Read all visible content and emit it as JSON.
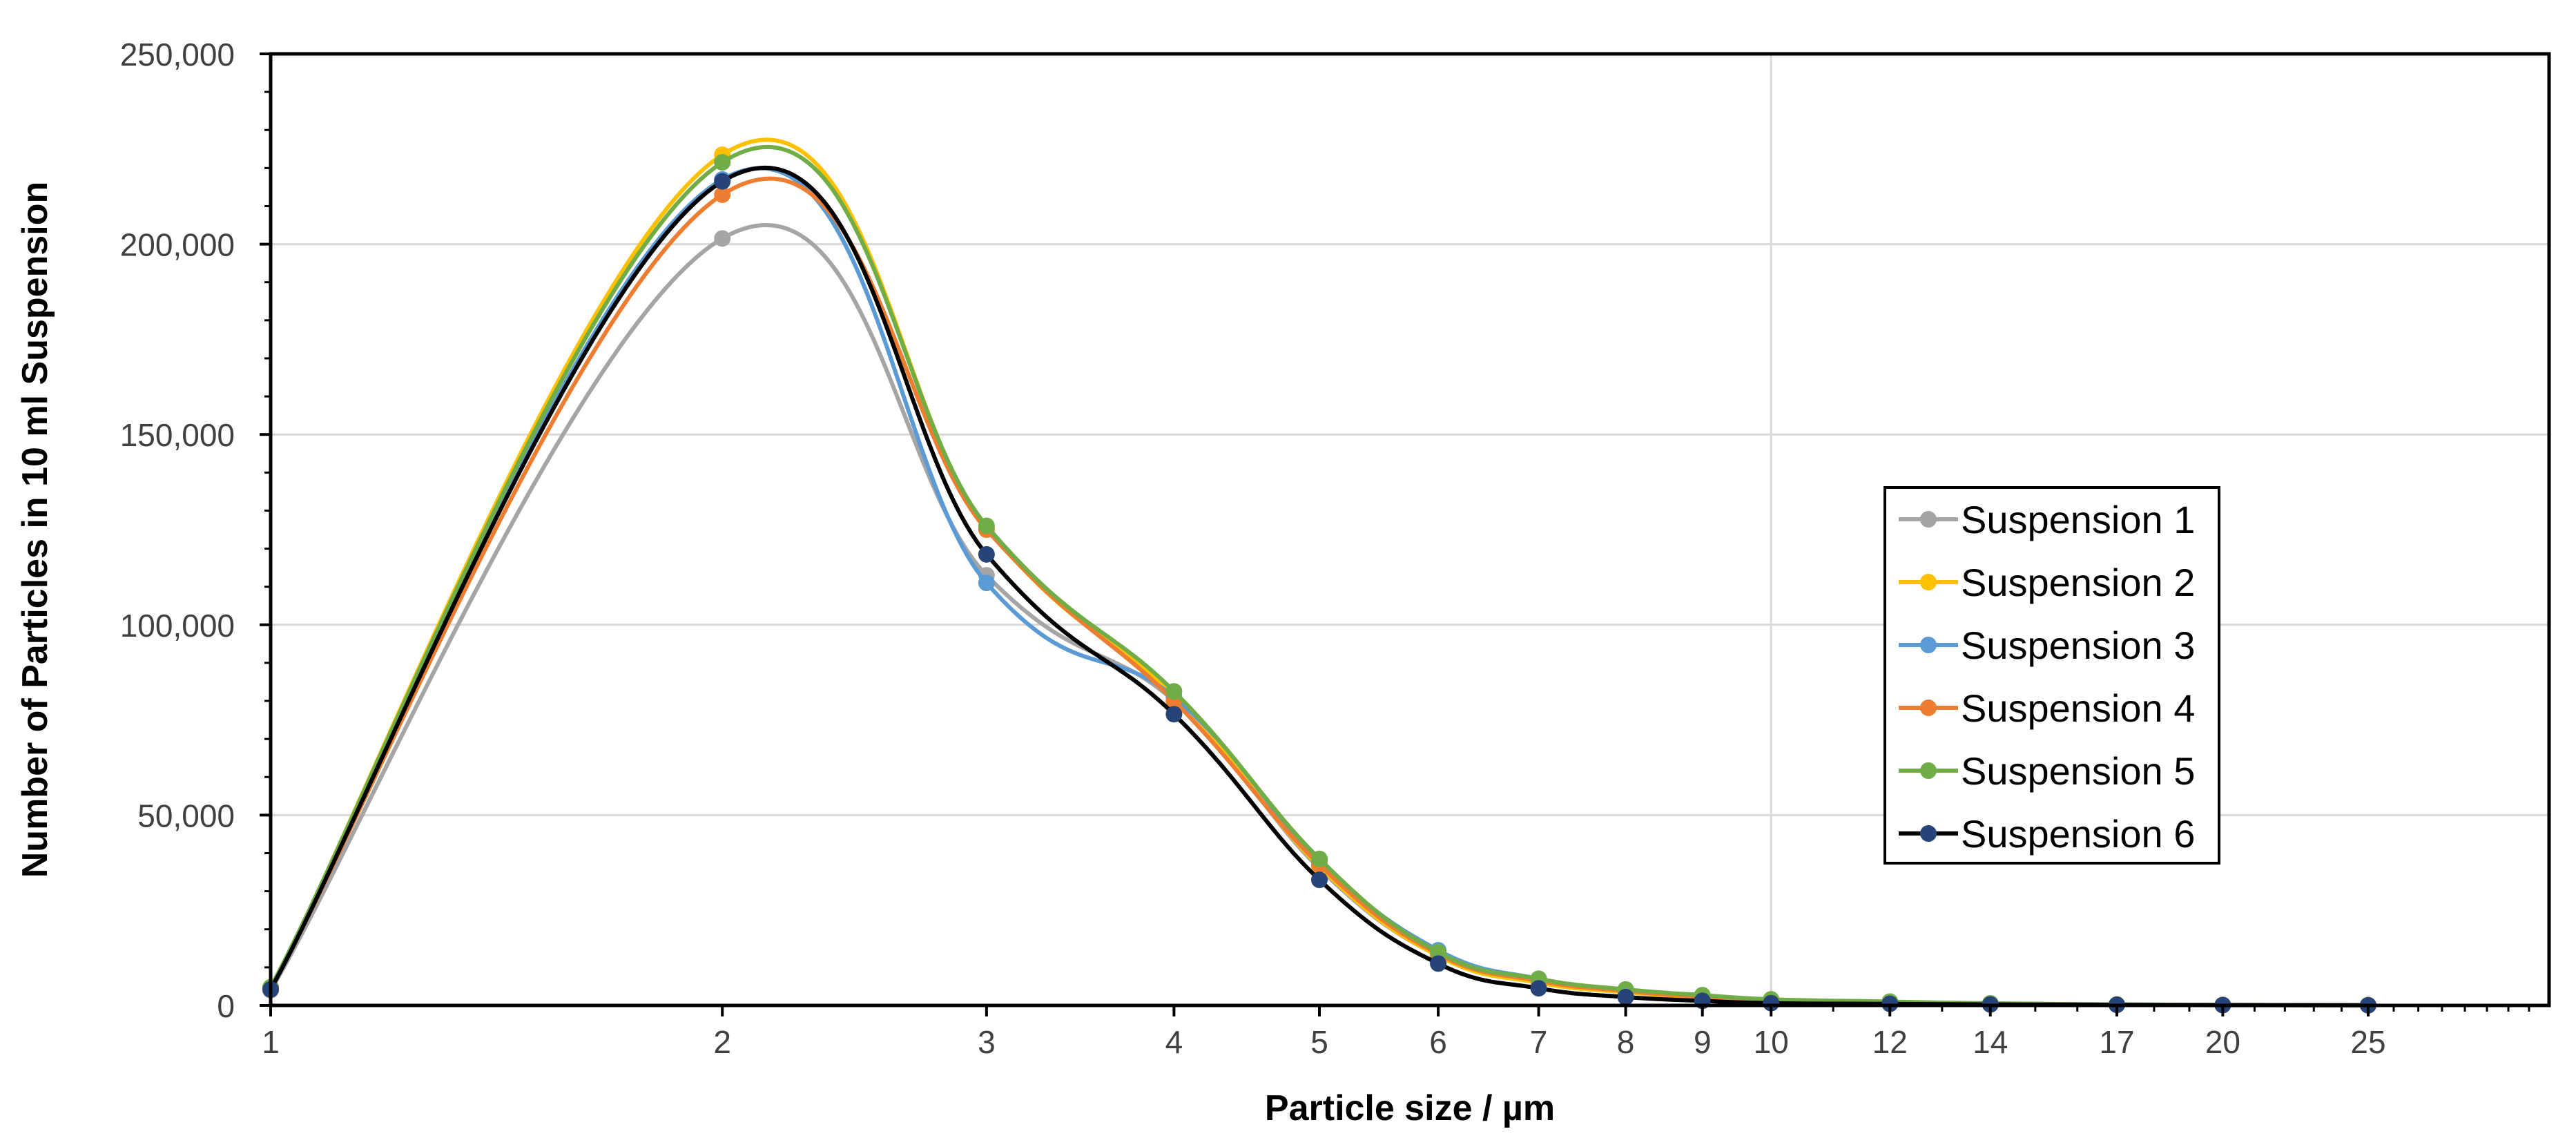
{
  "chart_data": {
    "type": "line",
    "title": "",
    "xlabel": "Particle size / µm",
    "ylabel": "Number of Particles in 10 ml Suspension",
    "x_scale": "log",
    "xlim": [
      1,
      33
    ],
    "ylim": [
      0,
      250000
    ],
    "x_ticks": [
      1,
      2,
      3,
      4,
      5,
      6,
      7,
      8,
      9,
      10,
      12,
      14,
      17,
      20,
      25
    ],
    "x_tick_labels": [
      "1",
      "2",
      "3",
      "4",
      "5",
      "6",
      "7",
      "8",
      "9",
      "10",
      "12",
      "14",
      "17",
      "20",
      "25"
    ],
    "y_ticks": [
      0,
      50000,
      100000,
      150000,
      200000,
      250000
    ],
    "y_tick_labels": [
      "0",
      "50,000",
      "100,000",
      "150,000",
      "200,000",
      "250,000"
    ],
    "grid": "horizontal major gridlines plus vertical gridline at x=10",
    "legend_position": "center-right",
    "x": [
      1,
      2,
      3,
      4,
      5,
      6,
      7,
      8,
      9,
      10,
      12,
      14,
      17,
      20,
      25
    ],
    "series": [
      {
        "name": "Suspension 1",
        "color": "#A5A5A5",
        "values": [
          4000,
          201500,
          113000,
          80000,
          36000,
          13000,
          6000,
          3500,
          2000,
          1200,
          700,
          400,
          200,
          100,
          50
        ]
      },
      {
        "name": "Suspension 2",
        "color": "#FFC000",
        "values": [
          4500,
          223500,
          125500,
          81000,
          36500,
          13000,
          6000,
          3500,
          2000,
          1200,
          700,
          400,
          200,
          100,
          50
        ]
      },
      {
        "name": "Suspension 3",
        "color": "#5B9BD5",
        "values": [
          4500,
          217000,
          111000,
          81000,
          38000,
          14500,
          7000,
          4000,
          2500,
          1500,
          900,
          500,
          250,
          120,
          60
        ]
      },
      {
        "name": "Suspension 4",
        "color": "#ED7D31",
        "values": [
          4500,
          213000,
          125000,
          80000,
          37000,
          13500,
          6500,
          3800,
          2200,
          1300,
          800,
          450,
          220,
          110,
          55
        ]
      },
      {
        "name": "Suspension 5",
        "color": "#70AD47",
        "values": [
          4800,
          221500,
          126000,
          82500,
          38500,
          14000,
          7000,
          4200,
          2700,
          1600,
          1000,
          550,
          260,
          120,
          60
        ]
      },
      {
        "name": "Suspension 6",
        "color": "#264478",
        "line_color": "#000000",
        "values": [
          4200,
          216500,
          118500,
          76500,
          33000,
          11000,
          4500,
          2200,
          1200,
          600,
          400,
          250,
          150,
          80,
          40
        ]
      }
    ]
  }
}
